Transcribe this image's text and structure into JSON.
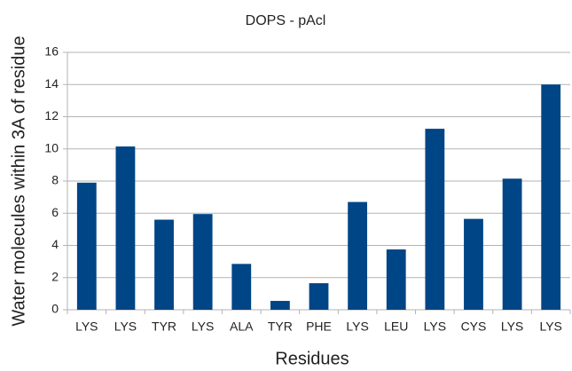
{
  "chart_data": {
    "type": "bar",
    "title": "DOPS - pAcl",
    "x_label": "Residues",
    "y_label": "Water molecules within 3A of residue",
    "categories": [
      "LYS",
      "LYS",
      "TYR",
      "LYS",
      "ALA",
      "TYR",
      "PHE",
      "LYS",
      "LEU",
      "LYS",
      "CYS",
      "LYS",
      "LYS"
    ],
    "values": [
      7.9,
      10.15,
      5.6,
      5.95,
      2.85,
      0.55,
      1.65,
      6.7,
      3.75,
      11.25,
      5.65,
      8.15,
      14.0
    ],
    "color": "#004586",
    "ylim": [
      0,
      16
    ],
    "yticks": [
      0,
      2,
      4,
      6,
      8,
      10,
      12,
      14,
      16
    ],
    "grid": true
  }
}
